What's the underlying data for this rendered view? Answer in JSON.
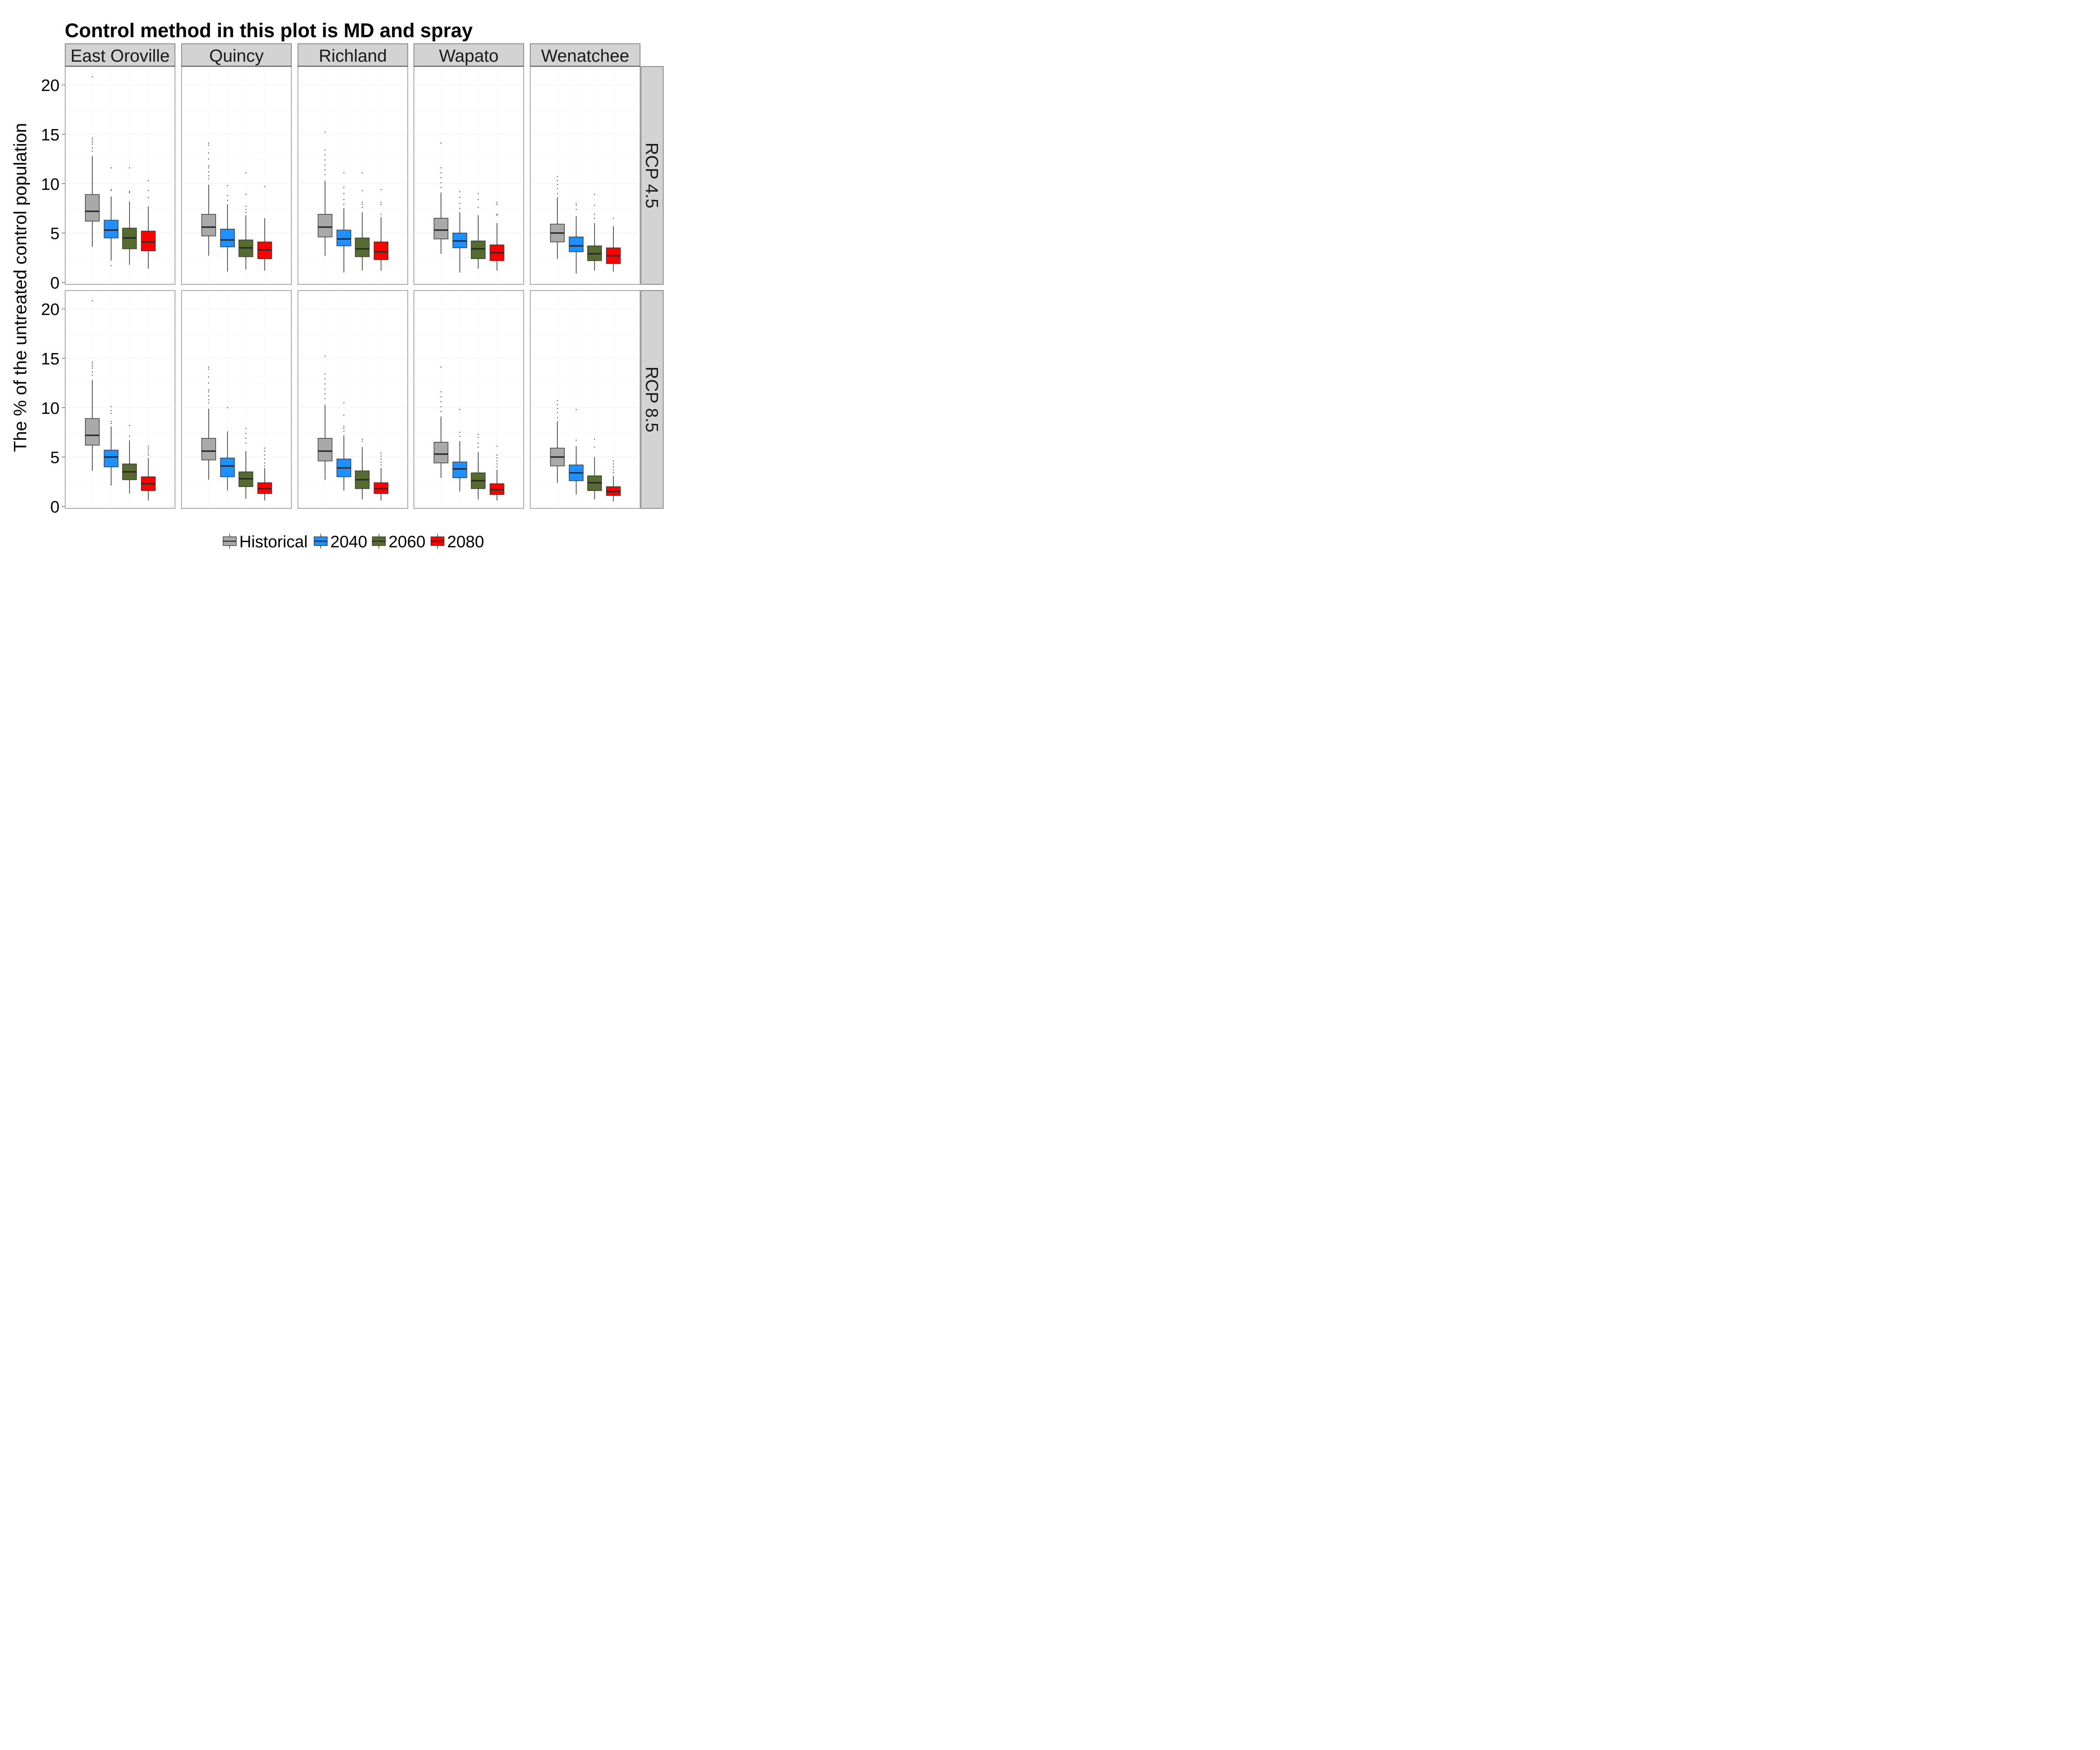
{
  "chart_data": {
    "type": "boxplot",
    "title": "Control method in this plot is MD and spray",
    "ylabel": "The % of the untreated control population",
    "xlabel": "",
    "ylim": [
      0,
      22
    ],
    "yticks": [
      0,
      5,
      10,
      15,
      20
    ],
    "grid": true,
    "legend_position": "bottom",
    "columns": [
      "East Oroville",
      "Quincy",
      "Richland",
      "Wapato",
      "Wenatchee"
    ],
    "rows": [
      "RCP 4.5",
      "RCP 8.5"
    ],
    "series": [
      {
        "name": "Historical",
        "color": "#A9A9A9"
      },
      {
        "name": "2040",
        "color": "#1E90FF"
      },
      {
        "name": "2060",
        "color": "#556B2F"
      },
      {
        "name": "2080",
        "color": "#FF0000"
      }
    ],
    "panels": [
      {
        "row": "RCP 4.5",
        "column": "East Oroville",
        "boxes": [
          {
            "series": "Historical",
            "whisker_low": 3.6,
            "q1": 6.2,
            "median": 7.2,
            "q3": 8.9,
            "whisker_high": 12.8,
            "outliers": [
              13.3,
              13.6,
              14.0,
              14.2,
              14.4,
              14.6,
              20.8
            ]
          },
          {
            "series": "2040",
            "whisker_low": 2.2,
            "q1": 4.5,
            "median": 5.3,
            "q3": 6.3,
            "whisker_high": 8.7,
            "outliers": [
              1.7,
              9.3,
              9.4,
              11.6
            ]
          },
          {
            "series": "2060",
            "whisker_low": 1.8,
            "q1": 3.4,
            "median": 4.5,
            "q3": 5.5,
            "whisker_high": 8.2,
            "outliers": [
              9.1,
              9.2,
              11.6
            ]
          },
          {
            "series": "2080",
            "whisker_low": 1.4,
            "q1": 3.2,
            "median": 4.1,
            "q3": 5.2,
            "whisker_high": 7.7,
            "outliers": [
              8.6,
              9.3,
              10.3
            ]
          }
        ]
      },
      {
        "row": "RCP 4.5",
        "column": "Quincy",
        "boxes": [
          {
            "series": "Historical",
            "whisker_low": 2.7,
            "q1": 4.7,
            "median": 5.6,
            "q3": 6.9,
            "whisker_high": 9.9,
            "outliers": [
              10.5,
              10.8,
              11.2,
              11.6,
              11.8,
              12.5,
              13.1,
              13.9,
              14.1
            ]
          },
          {
            "series": "2040",
            "whisker_low": 1.1,
            "q1": 3.6,
            "median": 4.3,
            "q3": 5.4,
            "whisker_high": 7.9,
            "outliers": [
              8.3,
              8.8,
              9.8
            ]
          },
          {
            "series": "2060",
            "whisker_low": 1.3,
            "q1": 2.6,
            "median": 3.5,
            "q3": 4.3,
            "whisker_high": 6.8,
            "outliers": [
              7.1,
              7.4,
              7.7,
              8.9,
              11.1
            ]
          },
          {
            "series": "2080",
            "whisker_low": 1.2,
            "q1": 2.4,
            "median": 3.3,
            "q3": 4.1,
            "whisker_high": 6.5,
            "outliers": [
              9.7
            ]
          }
        ]
      },
      {
        "row": "RCP 4.5",
        "column": "Richland",
        "boxes": [
          {
            "series": "Historical",
            "whisker_low": 2.7,
            "q1": 4.6,
            "median": 5.6,
            "q3": 6.9,
            "whisker_high": 10.3,
            "outliers": [
              10.9,
              11.4,
              11.9,
              12.4,
              12.9,
              13.4,
              15.2
            ]
          },
          {
            "series": "2040",
            "whisker_low": 1.0,
            "q1": 3.7,
            "median": 4.4,
            "q3": 5.3,
            "whisker_high": 7.5,
            "outliers": [
              7.9,
              8.4,
              9.0,
              9.6,
              11.1
            ]
          },
          {
            "series": "2060",
            "whisker_low": 1.2,
            "q1": 2.6,
            "median": 3.4,
            "q3": 4.5,
            "whisker_high": 7.1,
            "outliers": [
              7.6,
              7.9,
              8.1,
              9.3,
              11.1
            ]
          },
          {
            "series": "2080",
            "whisker_low": 1.2,
            "q1": 2.3,
            "median": 3.1,
            "q3": 4.1,
            "whisker_high": 6.6,
            "outliers": [
              6.9,
              7.9,
              8.1,
              9.4
            ]
          }
        ]
      },
      {
        "row": "RCP 4.5",
        "column": "Wapato",
        "boxes": [
          {
            "series": "Historical",
            "whisker_low": 2.9,
            "q1": 4.4,
            "median": 5.3,
            "q3": 6.5,
            "whisker_high": 9.1,
            "outliers": [
              9.6,
              10.1,
              10.6,
              11.1,
              11.6,
              14.1
            ]
          },
          {
            "series": "2040",
            "whisker_low": 1.0,
            "q1": 3.5,
            "median": 4.2,
            "q3": 5.0,
            "whisker_high": 7.1,
            "outliers": [
              7.5,
              8.0,
              8.6,
              9.2
            ]
          },
          {
            "series": "2060",
            "whisker_low": 1.4,
            "q1": 2.4,
            "median": 3.4,
            "q3": 4.2,
            "whisker_high": 6.8,
            "outliers": [
              7.6,
              8.4,
              9.0
            ]
          },
          {
            "series": "2080",
            "whisker_low": 1.2,
            "q1": 2.2,
            "median": 3.0,
            "q3": 3.8,
            "whisker_high": 6.0,
            "outliers": [
              6.8,
              6.9,
              7.9,
              8.1
            ]
          }
        ]
      },
      {
        "row": "RCP 4.5",
        "column": "Wenatchee",
        "boxes": [
          {
            "series": "Historical",
            "whisker_low": 2.4,
            "q1": 4.1,
            "median": 5.0,
            "q3": 5.9,
            "whisker_high": 8.6,
            "outliers": [
              9.0,
              9.5,
              9.9,
              10.3,
              10.7
            ]
          },
          {
            "series": "2040",
            "whisker_low": 0.9,
            "q1": 3.1,
            "median": 3.7,
            "q3": 4.6,
            "whisker_high": 6.7,
            "outliers": [
              7.4,
              7.8,
              8.0
            ]
          },
          {
            "series": "2060",
            "whisker_low": 1.2,
            "q1": 2.2,
            "median": 2.9,
            "q3": 3.7,
            "whisker_high": 6.0,
            "outliers": [
              6.5,
              6.9,
              7.8,
              8.9
            ]
          },
          {
            "series": "2080",
            "whisker_low": 1.1,
            "q1": 1.9,
            "median": 2.7,
            "q3": 3.5,
            "whisker_high": 5.7,
            "outliers": [
              6.5
            ]
          }
        ]
      },
      {
        "row": "RCP 8.5",
        "column": "East Oroville",
        "boxes": [
          {
            "series": "Historical",
            "whisker_low": 3.6,
            "q1": 6.2,
            "median": 7.2,
            "q3": 8.9,
            "whisker_high": 12.8,
            "outliers": [
              13.3,
              13.6,
              14.0,
              14.2,
              14.4,
              14.6,
              20.8
            ]
          },
          {
            "series": "2040",
            "whisker_low": 2.1,
            "q1": 4.0,
            "median": 5.0,
            "q3": 5.7,
            "whisker_high": 8.1,
            "outliers": [
              8.4,
              8.6,
              9.4,
              9.7,
              10.1
            ]
          },
          {
            "series": "2060",
            "whisker_low": 1.3,
            "q1": 2.7,
            "median": 3.5,
            "q3": 4.3,
            "whisker_high": 6.7,
            "outliers": [
              7.1,
              8.2
            ]
          },
          {
            "series": "2080",
            "whisker_low": 0.6,
            "q1": 1.6,
            "median": 2.3,
            "q3": 3.0,
            "whisker_high": 4.9,
            "outliers": [
              5.2,
              5.4,
              5.7,
              5.9,
              6.1
            ]
          }
        ]
      },
      {
        "row": "RCP 8.5",
        "column": "Quincy",
        "boxes": [
          {
            "series": "Historical",
            "whisker_low": 2.7,
            "q1": 4.7,
            "median": 5.6,
            "q3": 6.9,
            "whisker_high": 9.9,
            "outliers": [
              10.5,
              10.8,
              11.2,
              11.6,
              11.8,
              12.5,
              13.1,
              13.9,
              14.1
            ]
          },
          {
            "series": "2040",
            "whisker_low": 1.6,
            "q1": 3.0,
            "median": 4.1,
            "q3": 4.9,
            "whisker_high": 7.6,
            "outliers": [
              10.0
            ]
          },
          {
            "series": "2060",
            "whisker_low": 0.8,
            "q1": 2.0,
            "median": 2.8,
            "q3": 3.5,
            "whisker_high": 5.6,
            "outliers": [
              6.4,
              6.9,
              7.4,
              7.9
            ]
          },
          {
            "series": "2080",
            "whisker_low": 0.6,
            "q1": 1.3,
            "median": 1.8,
            "q3": 2.4,
            "whisker_high": 3.9,
            "outliers": [
              4.1,
              4.4,
              4.8,
              5.2,
              5.6,
              5.9
            ]
          }
        ]
      },
      {
        "row": "RCP 8.5",
        "column": "Richland",
        "boxes": [
          {
            "series": "Historical",
            "whisker_low": 2.7,
            "q1": 4.6,
            "median": 5.6,
            "q3": 6.9,
            "whisker_high": 10.3,
            "outliers": [
              10.9,
              11.4,
              11.9,
              12.4,
              12.9,
              13.4,
              15.2
            ]
          },
          {
            "series": "2040",
            "whisker_low": 1.6,
            "q1": 3.0,
            "median": 3.9,
            "q3": 4.8,
            "whisker_high": 7.2,
            "outliers": [
              7.6,
              7.9,
              8.1,
              9.2,
              10.5
            ]
          },
          {
            "series": "2060",
            "whisker_low": 0.7,
            "q1": 1.8,
            "median": 2.7,
            "q3": 3.6,
            "whisker_high": 6.0,
            "outliers": [
              6.6,
              6.8
            ]
          },
          {
            "series": "2080",
            "whisker_low": 0.6,
            "q1": 1.3,
            "median": 1.8,
            "q3": 2.4,
            "whisker_high": 3.9,
            "outliers": [
              4.2,
              4.5,
              4.8,
              5.1,
              5.4
            ]
          }
        ]
      },
      {
        "row": "RCP 8.5",
        "column": "Wapato",
        "boxes": [
          {
            "series": "Historical",
            "whisker_low": 2.9,
            "q1": 4.4,
            "median": 5.3,
            "q3": 6.5,
            "whisker_high": 9.1,
            "outliers": [
              9.6,
              10.1,
              10.6,
              11.1,
              11.6,
              14.1
            ]
          },
          {
            "series": "2040",
            "whisker_low": 1.5,
            "q1": 2.9,
            "median": 3.8,
            "q3": 4.5,
            "whisker_high": 6.6,
            "outliers": [
              7.1,
              7.5,
              9.8
            ]
          },
          {
            "series": "2060",
            "whisker_low": 0.7,
            "q1": 1.8,
            "median": 2.6,
            "q3": 3.4,
            "whisker_high": 5.5,
            "outliers": [
              6.0,
              6.4,
              7.0,
              7.3
            ]
          },
          {
            "series": "2080",
            "whisker_low": 0.6,
            "q1": 1.2,
            "median": 1.7,
            "q3": 2.3,
            "whisker_high": 3.7,
            "outliers": [
              4.0,
              4.3,
              4.6,
              4.9,
              5.2,
              6.1
            ]
          }
        ]
      },
      {
        "row": "RCP 8.5",
        "column": "Wenatchee",
        "boxes": [
          {
            "series": "Historical",
            "whisker_low": 2.4,
            "q1": 4.1,
            "median": 5.0,
            "q3": 5.9,
            "whisker_high": 8.6,
            "outliers": [
              9.0,
              9.5,
              9.9,
              10.3,
              10.7
            ]
          },
          {
            "series": "2040",
            "whisker_low": 1.2,
            "q1": 2.6,
            "median": 3.4,
            "q3": 4.2,
            "whisker_high": 6.1,
            "outliers": [
              6.7,
              9.8
            ]
          },
          {
            "series": "2060",
            "whisker_low": 0.7,
            "q1": 1.6,
            "median": 2.4,
            "q3": 3.1,
            "whisker_high": 5.0,
            "outliers": [
              6.0,
              6.8
            ]
          },
          {
            "series": "2080",
            "whisker_low": 0.5,
            "q1": 1.1,
            "median": 1.5,
            "q3": 2.0,
            "whisker_high": 3.1,
            "outliers": [
              3.4,
              3.7,
              4.0,
              4.3,
              4.6
            ]
          }
        ]
      }
    ]
  }
}
